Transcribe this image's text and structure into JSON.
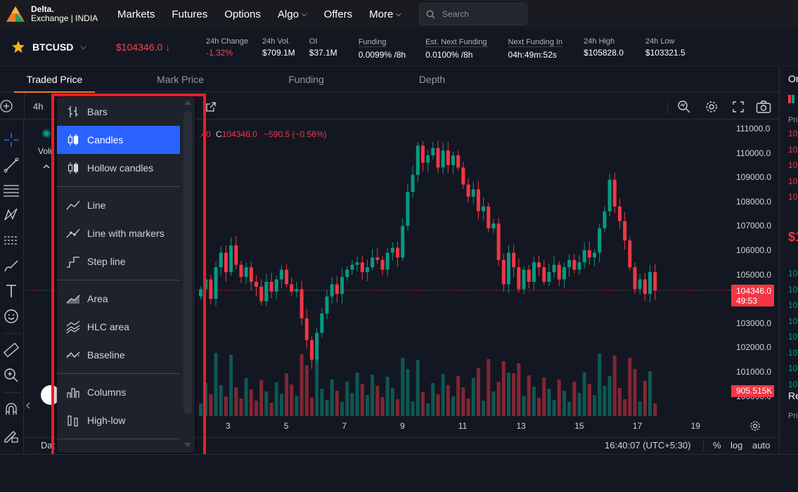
{
  "brand": {
    "line1": "Delta.",
    "line2": "Exchange | INDIA",
    "accent": "#f57c1f"
  },
  "nav": {
    "items": [
      {
        "label": "Markets"
      },
      {
        "label": "Futures"
      },
      {
        "label": "Options"
      },
      {
        "label": "Algo",
        "dropdown": true
      },
      {
        "label": "Offers"
      },
      {
        "label": "More",
        "dropdown": true
      }
    ],
    "search_placeholder": "Search"
  },
  "ticker": {
    "symbol": "BTCUSD",
    "last_price": "$104346.0",
    "stats": [
      {
        "label": "24h Change",
        "value": "-1.32%",
        "color": "red",
        "dotted": false
      },
      {
        "label": "24h Vol.",
        "value": "$709.1M",
        "color": "white",
        "dotted": false
      },
      {
        "label": "OI",
        "value": "$37.1M",
        "color": "white",
        "dotted": false
      },
      {
        "label": "Funding",
        "value": "0.0099% /8h",
        "color": "white",
        "dotted": true
      },
      {
        "label": "Est. Next Funding",
        "value": "0.0100% /8h",
        "color": "white",
        "dotted": true
      },
      {
        "label": "Next Funding In",
        "value": "04h:49m:52s",
        "color": "white",
        "dotted": true
      },
      {
        "label": "24h High",
        "value": "$105828.0",
        "color": "white",
        "dotted": false
      },
      {
        "label": "24h Low",
        "value": "$103321.5",
        "color": "white",
        "dotted": false
      }
    ]
  },
  "tabs": [
    {
      "label": "Traded Price",
      "active": true
    },
    {
      "label": "Mark Price",
      "active": false
    },
    {
      "label": "Funding",
      "active": false
    },
    {
      "label": "Depth",
      "active": false
    }
  ],
  "chart": {
    "interval": "4h",
    "legend_close_prefix": "C",
    "legend_close": "104346.0",
    "legend_change": "−590.5 (−0.56%)",
    "legend_partial": ".40",
    "volume_label_partial": "Volu",
    "price_axis": [
      "111000.0",
      "110000.0",
      "109000.0",
      "108000.0",
      "107000.0",
      "106000.0",
      "105000.0",
      "104000.0",
      "103000.0",
      "102000.0",
      "101000.0",
      "100000.0"
    ],
    "last_price_tag": "104346.0",
    "countdown_tag": "49:53",
    "volume_tag": "905.515K",
    "date_axis": [
      "3",
      "5",
      "7",
      "9",
      "11",
      "13",
      "15",
      "17",
      "19"
    ],
    "date_axis_partial": "Dat",
    "clock": "16:40:07 (UTC+5:30)",
    "percent_label": "%",
    "log_label": "log",
    "auto_label": "auto",
    "up_color": "#089981",
    "down_color": "#f23645"
  },
  "chart_menu": {
    "items": [
      {
        "label": "Bars",
        "icon": "bars-icon",
        "selected": false
      },
      {
        "label": "Candles",
        "icon": "candles-icon",
        "selected": true
      },
      {
        "label": "Hollow candles",
        "icon": "hollow-candles-icon",
        "selected": false
      },
      {
        "label": "Line",
        "icon": "line-icon",
        "selected": false
      },
      {
        "label": "Line with markers",
        "icon": "line-markers-icon",
        "selected": false
      },
      {
        "label": "Step line",
        "icon": "step-line-icon",
        "selected": false
      },
      {
        "label": "Area",
        "icon": "area-icon",
        "selected": false
      },
      {
        "label": "HLC area",
        "icon": "hlc-area-icon",
        "selected": false
      },
      {
        "label": "Baseline",
        "icon": "baseline-icon",
        "selected": false
      },
      {
        "label": "Columns",
        "icon": "columns-icon",
        "selected": false
      },
      {
        "label": "High-low",
        "icon": "high-low-icon",
        "selected": false
      }
    ],
    "selected_color": "#2962ff",
    "annotation_color": "#ec1c24"
  },
  "orderbook_partial": {
    "header_partial": "Or",
    "price_label_partial": "Pri",
    "big_price_partial": "$1",
    "trades_header_partial": "Re",
    "trades_price_label_partial": "Pri",
    "rows_partial": [
      "10",
      "10",
      "10",
      "10",
      "10",
      "10",
      "10",
      "10",
      "10",
      "10",
      "10",
      "10",
      "10"
    ]
  }
}
